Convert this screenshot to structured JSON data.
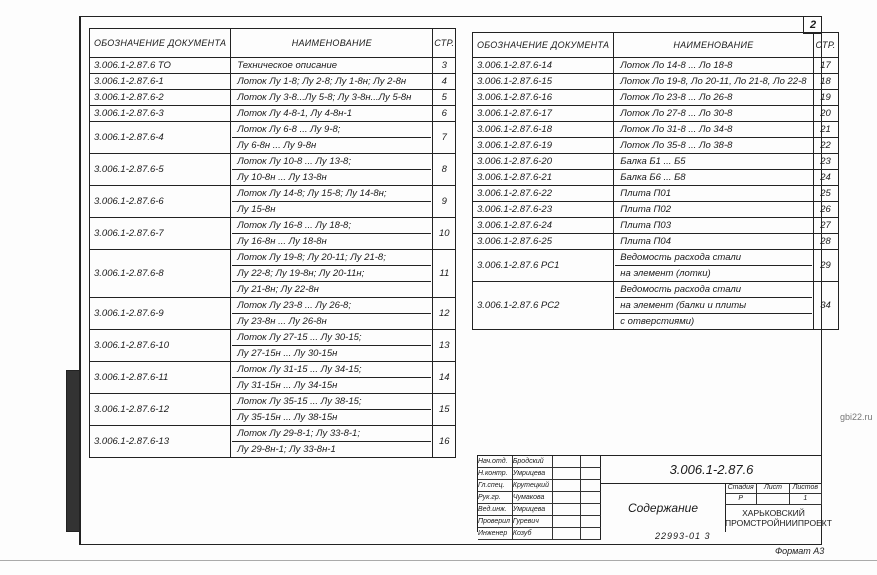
{
  "sheet_number": "2",
  "headers": {
    "designation": "Обозначение документа",
    "name": "Наименование",
    "page": "Стр."
  },
  "left_rows": [
    {
      "designation": "3.006.1-2.87.6 ТО",
      "lines": [
        "Техническое описание"
      ],
      "page": "3"
    },
    {
      "designation": "3.006.1-2.87.6-1",
      "lines": [
        "Лоток Лу 1-8; Лу 2-8; Лу 1-8н; Лу 2-8н"
      ],
      "page": "4"
    },
    {
      "designation": "3.006.1-2.87.6-2",
      "lines": [
        "Лоток Лу 3-8...Лу 5-8; Лу 3-8н...Лу 5-8н"
      ],
      "page": "5"
    },
    {
      "designation": "3.006.1-2.87.6-3",
      "lines": [
        "Лоток Лу 4-8-1, Лу 4-8н-1"
      ],
      "page": "6"
    },
    {
      "designation": "3.006.1-2.87.6-4",
      "lines": [
        "Лоток Лу 6-8 ... Лу 9-8;",
        "Лу 6-8н ... Лу 9-8н"
      ],
      "page": "7"
    },
    {
      "designation": "3.006.1-2.87.6-5",
      "lines": [
        "Лоток Лу 10-8 ... Лу 13-8;",
        "Лу 10-8н ... Лу 13-8н"
      ],
      "page": "8"
    },
    {
      "designation": "3.006.1-2.87.6-6",
      "lines": [
        "Лоток Лу 14-8; Лу 15-8; Лу 14-8н;",
        "Лу 15-8н"
      ],
      "page": "9"
    },
    {
      "designation": "3.006.1-2.87.6-7",
      "lines": [
        "Лоток Лу 16-8 ... Лу 18-8;",
        "Лу 16-8н ... Лу 18-8н"
      ],
      "page": "10"
    },
    {
      "designation": "3.006.1-2.87.6-8",
      "lines": [
        "Лоток Лу 19-8; Лу 20-11; Лу 21-8;",
        "Лу 22-8; Лу 19-8н; Лу 20-11н;",
        "Лу 21-8н; Лу 22-8н"
      ],
      "page": "11"
    },
    {
      "designation": "3.006.1-2.87.6-9",
      "lines": [
        "Лоток Лу 23-8 ... Лу 26-8;",
        "Лу 23-8н ... Лу 26-8н"
      ],
      "page": "12"
    },
    {
      "designation": "3.006.1-2.87.6-10",
      "lines": [
        "Лоток Лу 27-15 ... Лу 30-15;",
        "Лу 27-15н ... Лу 30-15н"
      ],
      "page": "13"
    },
    {
      "designation": "3.006.1-2.87.6-11",
      "lines": [
        "Лоток Лу 31-15 ... Лу 34-15;",
        "Лу 31-15н ... Лу 34-15н"
      ],
      "page": "14"
    },
    {
      "designation": "3.006.1-2.87.6-12",
      "lines": [
        "Лоток Лу 35-15 ... Лу 38-15;",
        "Лу 35-15н ... Лу 38-15н"
      ],
      "page": "15"
    },
    {
      "designation": "3.006.1-2.87.6-13",
      "lines": [
        "Лоток Лу 29-8-1; Лу 33-8-1;",
        "Лу 29-8н-1; Лу 33-8н-1"
      ],
      "page": "16"
    }
  ],
  "right_rows": [
    {
      "designation": "3.006.1-2.87.6-14",
      "lines": [
        "Лоток Ло 14-8 ... Ло 18-8"
      ],
      "page": "17"
    },
    {
      "designation": "3.006.1-2.87.6-15",
      "lines": [
        "Лоток Ло 19-8, Ло 20-11, Ло 21-8, Ло 22-8"
      ],
      "page": "18"
    },
    {
      "designation": "3.006.1-2.87.6-16",
      "lines": [
        "Лоток Ло 23-8 ... Ло 26-8"
      ],
      "page": "19"
    },
    {
      "designation": "3.006.1-2.87.6-17",
      "lines": [
        "Лоток Ло 27-8 ... Ло 30-8"
      ],
      "page": "20"
    },
    {
      "designation": "3.006.1-2.87.6-18",
      "lines": [
        "Лоток Ло 31-8 ... Ло 34-8"
      ],
      "page": "21"
    },
    {
      "designation": "3.006.1-2.87.6-19",
      "lines": [
        "Лоток Ло 35-8 ... Ло 38-8"
      ],
      "page": "22"
    },
    {
      "designation": "3.006.1-2.87.6-20",
      "lines": [
        "Балка Б1 ... Б5"
      ],
      "page": "23"
    },
    {
      "designation": "3.006.1-2.87.6-21",
      "lines": [
        "Балка Б6 ... Б8"
      ],
      "page": "24"
    },
    {
      "designation": "3.006.1-2.87.6-22",
      "lines": [
        "Плита П01"
      ],
      "page": "25"
    },
    {
      "designation": "3.006.1-2.87.6-23",
      "lines": [
        "Плита П02"
      ],
      "page": "26"
    },
    {
      "designation": "3.006.1-2.87.6-24",
      "lines": [
        "Плита П03"
      ],
      "page": "27"
    },
    {
      "designation": "3.006.1-2.87.6-25",
      "lines": [
        "Плита П04"
      ],
      "page": "28"
    },
    {
      "designation": "3.006.1-2.87.6 РС1",
      "lines": [
        "Ведомость расхода стали",
        "на элемент (лотки)"
      ],
      "page": "29"
    },
    {
      "designation": "3.006.1-2.87.6 РС2",
      "lines": [
        "Ведомость расхода стали",
        "на элемент (балки и плиты",
        "с отверстиями)"
      ],
      "page": "34"
    }
  ],
  "title_block": {
    "signatures": [
      {
        "role": "Нач.отд.",
        "name": "Бродский"
      },
      {
        "role": "Н.контр.",
        "name": "Умрицева"
      },
      {
        "role": "Гл.спец.",
        "name": "Крутецкий"
      },
      {
        "role": "Рук.гр.",
        "name": "Чумакова"
      },
      {
        "role": "Вед.инж.",
        "name": "Умрицева"
      },
      {
        "role": "Проверил",
        "name": "Гуревич"
      },
      {
        "role": "Инженер",
        "name": "Козуб"
      }
    ],
    "code": "3.006.1-2.87.6",
    "title": "Содержание",
    "stage_header": [
      "Стадия",
      "Лист",
      "Листов"
    ],
    "stage_values": [
      "Р",
      "",
      "1"
    ],
    "organization_line1": "ХАРЬКОВСКИЙ",
    "organization_line2": "ПРОМСТРОЙНИИПРОЕКТ"
  },
  "inventory_number": "22993-01  3",
  "format": "Формат А3",
  "watermark": "gbi22.ru"
}
